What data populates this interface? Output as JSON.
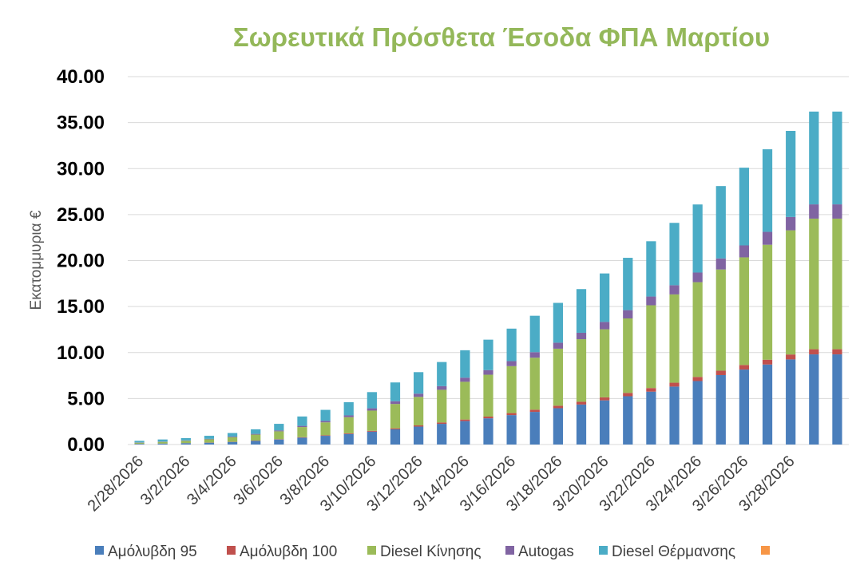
{
  "chart_data": {
    "type": "bar",
    "stacked": true,
    "title": "Σωρευτικά Πρόσθετα Έσοδα ΦΠΑ Μαρτίου",
    "ylabel": "Εκατομμυρια €",
    "xlabel": "",
    "ylim": [
      0,
      40
    ],
    "yticks": [
      "0.00",
      "5.00",
      "10.00",
      "15.00",
      "20.00",
      "25.00",
      "30.00",
      "35.00",
      "40.00"
    ],
    "grid": true,
    "legend_position": "bottom",
    "categories": [
      "2/28/2026",
      "3/1/2026",
      "3/2/2026",
      "3/3/2026",
      "3/4/2026",
      "3/5/2026",
      "3/6/2026",
      "3/7/2026",
      "3/8/2026",
      "3/9/2026",
      "3/10/2026",
      "3/11/2026",
      "3/12/2026",
      "3/13/2026",
      "3/14/2026",
      "3/15/2026",
      "3/16/2026",
      "3/17/2026",
      "3/18/2026",
      "3/19/2026",
      "3/20/2026",
      "3/21/2026",
      "3/22/2026",
      "3/23/2026",
      "3/24/2026",
      "3/25/2026",
      "3/26/2026",
      "3/27/2026",
      "3/28/2026",
      "3/29/2026",
      "3/30/2026"
    ],
    "tick_labels": [
      "2/28/2026",
      "3/2/2026",
      "3/4/2026",
      "3/6/2026",
      "3/8/2026",
      "3/10/2026",
      "3/12/2026",
      "3/14/2026",
      "3/16/2026",
      "3/18/2026",
      "3/20/2026",
      "3/22/2026",
      "3/24/2026",
      "3/26/2026",
      "3/28/2026"
    ],
    "series": [
      {
        "name": "Αμόλυβδη 95",
        "color": "#4a7ebb",
        "values": [
          0.07,
          0.1,
          0.15,
          0.2,
          0.28,
          0.4,
          0.55,
          0.75,
          0.95,
          1.15,
          1.4,
          1.65,
          1.95,
          2.25,
          2.55,
          2.85,
          3.2,
          3.55,
          3.95,
          4.35,
          4.8,
          5.25,
          5.75,
          6.3,
          6.9,
          7.55,
          8.15,
          8.7,
          9.25,
          9.8,
          9.8
        ]
      },
      {
        "name": "Αμόλυβδη 100",
        "color": "#c0504d",
        "values": [
          0.01,
          0.01,
          0.01,
          0.02,
          0.02,
          0.03,
          0.04,
          0.05,
          0.06,
          0.07,
          0.09,
          0.11,
          0.13,
          0.15,
          0.17,
          0.19,
          0.22,
          0.24,
          0.27,
          0.3,
          0.33,
          0.36,
          0.39,
          0.42,
          0.45,
          0.48,
          0.5,
          0.52,
          0.54,
          0.56,
          0.56
        ]
      },
      {
        "name": "Diesel Κίνησης",
        "color": "#9bbb59",
        "values": [
          0.12,
          0.18,
          0.25,
          0.35,
          0.5,
          0.65,
          0.85,
          1.1,
          1.4,
          1.75,
          2.2,
          2.65,
          3.1,
          3.55,
          4.1,
          4.55,
          5.1,
          5.65,
          6.2,
          6.8,
          7.4,
          8.1,
          9.0,
          9.6,
          10.3,
          11.0,
          11.7,
          12.5,
          13.5,
          14.2,
          14.2
        ]
      },
      {
        "name": "Autogas",
        "color": "#8064a2",
        "values": [
          0.03,
          0.03,
          0.04,
          0.05,
          0.07,
          0.08,
          0.1,
          0.13,
          0.16,
          0.2,
          0.25,
          0.3,
          0.35,
          0.4,
          0.45,
          0.5,
          0.55,
          0.6,
          0.65,
          0.7,
          0.8,
          0.9,
          0.95,
          1.0,
          1.05,
          1.2,
          1.3,
          1.4,
          1.45,
          1.55,
          1.55
        ]
      },
      {
        "name": "Diesel Θέρμανσης",
        "color": "#4bacc6",
        "values": [
          0.17,
          0.23,
          0.25,
          0.33,
          0.38,
          0.49,
          0.71,
          1.02,
          1.2,
          1.43,
          1.76,
          2.04,
          2.34,
          2.62,
          2.98,
          3.31,
          3.53,
          3.96,
          4.33,
          4.75,
          5.27,
          5.69,
          6.01,
          6.78,
          7.4,
          7.87,
          8.45,
          8.98,
          9.36,
          10.09,
          10.09
        ]
      },
      {
        "name": "",
        "color": "#f79646",
        "values": [
          0,
          0,
          0,
          0,
          0,
          0,
          0,
          0,
          0,
          0,
          0,
          0,
          0,
          0,
          0,
          0,
          0,
          0,
          0,
          0,
          0,
          0,
          0,
          0,
          0,
          0,
          0,
          0,
          0,
          0,
          0
        ]
      }
    ]
  }
}
